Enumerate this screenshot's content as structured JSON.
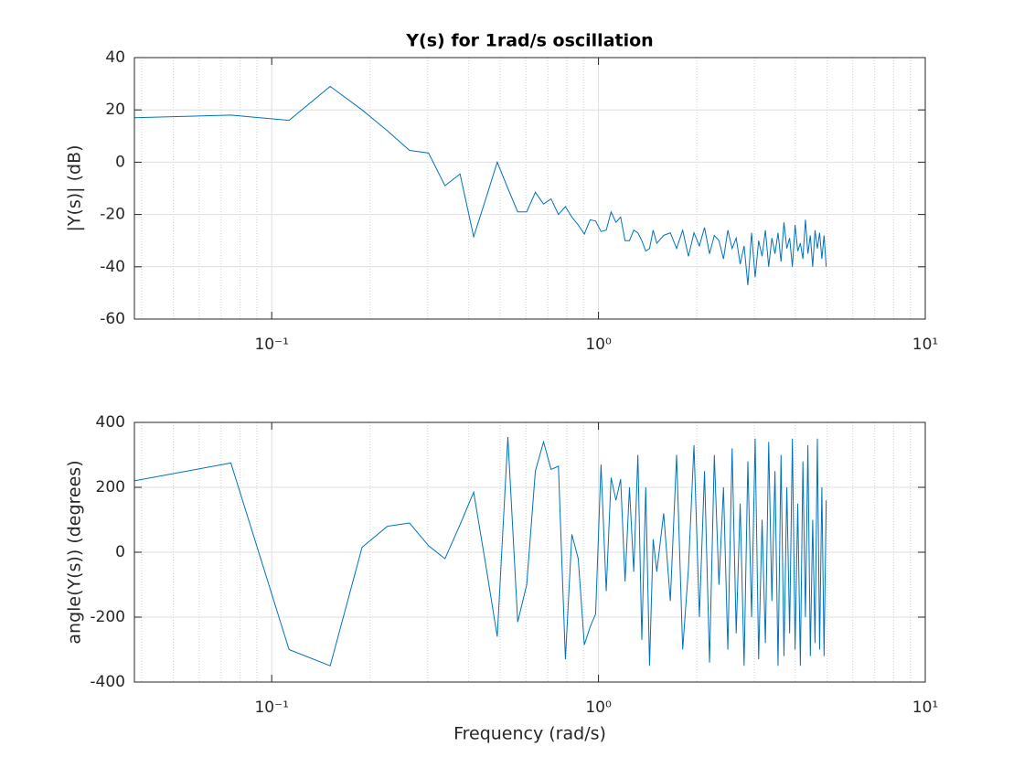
{
  "chart_data": [
    {
      "type": "line",
      "title": "Y(s) for 1rad/s oscillation",
      "ylabel": "|Y(s)| (dB)",
      "xscale": "log",
      "grid": true,
      "minor_grid": true,
      "xlim": [
        0.038,
        10
      ],
      "xticks": [
        {
          "value": 0.1,
          "label": "10⁻¹"
        },
        {
          "value": 1,
          "label": "10⁰"
        },
        {
          "value": 10,
          "label": "10¹"
        }
      ],
      "ylim": [
        -60,
        40
      ],
      "yticks": [
        -60,
        -40,
        -20,
        0,
        20,
        40
      ],
      "x": [
        0.038,
        0.075,
        0.113,
        0.151,
        0.189,
        0.226,
        0.264,
        0.302,
        0.339,
        0.377,
        0.415,
        0.452,
        0.49,
        0.528,
        0.566,
        0.603,
        0.641,
        0.679,
        0.716,
        0.754,
        0.792,
        0.829,
        0.867,
        0.905,
        0.943,
        0.98,
        1.018,
        1.056,
        1.093,
        1.131,
        1.169,
        1.206,
        1.244,
        1.282,
        1.32,
        1.357,
        1.395,
        1.433,
        1.47,
        1.508,
        1.583,
        1.659,
        1.734,
        1.81,
        1.885,
        1.96,
        2.036,
        2.111,
        2.187,
        2.262,
        2.337,
        2.413,
        2.488,
        2.564,
        2.639,
        2.714,
        2.79,
        2.865,
        2.941,
        3.016,
        3.091,
        3.167,
        3.242,
        3.318,
        3.393,
        3.468,
        3.544,
        3.619,
        3.695,
        3.77,
        3.845,
        3.921,
        3.996,
        4.072,
        4.147,
        4.222,
        4.298,
        4.373,
        4.449,
        4.524,
        4.599,
        4.675,
        4.75,
        4.826,
        4.901,
        4.976
      ],
      "series": [
        {
          "color": "#0072bd",
          "values": [
            17,
            18,
            16,
            29,
            20,
            12,
            4.5,
            3.5,
            -9,
            -4.5,
            -28.5,
            -14,
            0,
            -10,
            -19,
            -19,
            -11.5,
            -16,
            -14,
            -20,
            -17,
            -21,
            -24,
            -27.5,
            -22,
            -22.5,
            -26.5,
            -26,
            -19,
            -23,
            -21,
            -30,
            -30,
            -26,
            -27,
            -30,
            -34,
            -33,
            -26,
            -31,
            -28,
            -27,
            -33,
            -26,
            -36,
            -27,
            -32,
            -25,
            -35,
            -28,
            -30,
            -37,
            -26,
            -33,
            -29,
            -39,
            -32,
            -47,
            -27,
            -44,
            -30,
            -36,
            -26,
            -40,
            -29,
            -35,
            -27,
            -38,
            -23,
            -33,
            -29,
            -40,
            -24,
            -34,
            -31,
            -37,
            -22,
            -35,
            -28,
            -40,
            -26,
            -33,
            -27,
            -37,
            -28,
            -40
          ]
        }
      ]
    },
    {
      "type": "line",
      "xlabel": "Frequency (rad/s)",
      "ylabel": "angle(Y(s)) (degrees)",
      "xscale": "log",
      "grid": true,
      "minor_grid": true,
      "xlim": [
        0.038,
        10
      ],
      "xticks": [
        {
          "value": 0.1,
          "label": "10⁻¹"
        },
        {
          "value": 1,
          "label": "10⁰"
        },
        {
          "value": 10,
          "label": "10¹"
        }
      ],
      "ylim": [
        -400,
        400
      ],
      "yticks": [
        -400,
        -200,
        0,
        200,
        400
      ],
      "x": [
        0.038,
        0.075,
        0.113,
        0.151,
        0.189,
        0.226,
        0.264,
        0.302,
        0.339,
        0.377,
        0.415,
        0.452,
        0.49,
        0.528,
        0.566,
        0.603,
        0.641,
        0.679,
        0.716,
        0.754,
        0.792,
        0.829,
        0.867,
        0.905,
        0.943,
        0.98,
        1.018,
        1.056,
        1.093,
        1.131,
        1.169,
        1.206,
        1.244,
        1.282,
        1.32,
        1.357,
        1.395,
        1.433,
        1.47,
        1.508,
        1.583,
        1.659,
        1.734,
        1.81,
        1.885,
        1.96,
        2.036,
        2.111,
        2.187,
        2.262,
        2.337,
        2.413,
        2.488,
        2.564,
        2.639,
        2.714,
        2.79,
        2.865,
        2.941,
        3.016,
        3.091,
        3.167,
        3.242,
        3.318,
        3.393,
        3.468,
        3.544,
        3.619,
        3.695,
        3.77,
        3.845,
        3.921,
        3.996,
        4.072,
        4.147,
        4.222,
        4.298,
        4.373,
        4.449,
        4.524,
        4.599,
        4.675,
        4.75,
        4.826,
        4.901,
        4.976
      ],
      "series": [
        {
          "color": "#0072bd",
          "values": [
            220,
            275,
            -300,
            -350,
            15,
            80,
            90,
            20,
            -20,
            85,
            185,
            -40,
            -260,
            355,
            -215,
            -100,
            250,
            340,
            255,
            265,
            -330,
            55,
            -20,
            -285,
            -230,
            -190,
            270,
            -120,
            230,
            160,
            225,
            -90,
            200,
            -60,
            300,
            -270,
            200,
            -350,
            40,
            -60,
            120,
            -150,
            300,
            -300,
            -50,
            330,
            -200,
            250,
            -340,
            300,
            -100,
            200,
            -300,
            320,
            -250,
            150,
            -350,
            280,
            -200,
            350,
            -330,
            100,
            -280,
            340,
            -150,
            250,
            -350,
            300,
            -320,
            200,
            -250,
            350,
            -300,
            150,
            -350,
            280,
            -200,
            330,
            -320,
            100,
            -280,
            350,
            -300,
            200,
            -320,
            160
          ]
        }
      ]
    }
  ]
}
